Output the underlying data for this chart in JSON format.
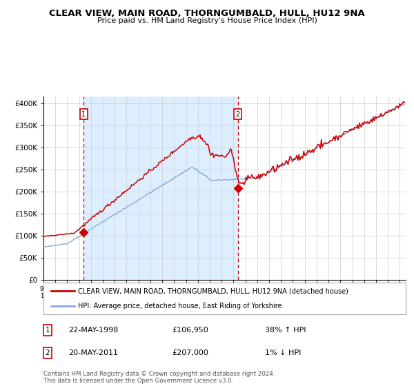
{
  "title": "CLEAR VIEW, MAIN ROAD, THORNGUMBALD, HULL, HU12 9NA",
  "subtitle": "Price paid vs. HM Land Registry's House Price Index (HPI)",
  "ylabel_ticks": [
    "£0",
    "£50K",
    "£100K",
    "£150K",
    "£200K",
    "£250K",
    "£300K",
    "£350K",
    "£400K"
  ],
  "ytick_values": [
    0,
    50000,
    100000,
    150000,
    200000,
    250000,
    300000,
    350000,
    400000
  ],
  "ylim": [
    0,
    415000
  ],
  "sale1_date": "22-MAY-1998",
  "sale1_price": 106950,
  "sale1_year": 1998.37,
  "sale1_pct": "38%",
  "sale1_dir": "↑",
  "sale2_date": "20-MAY-2011",
  "sale2_price": 207000,
  "sale2_year": 2011.37,
  "sale2_pct": "1%",
  "sale2_dir": "↓",
  "legend_line1": "CLEAR VIEW, MAIN ROAD, THORNGUMBALD, HULL, HU12 9NA (detached house)",
  "legend_line2": "HPI: Average price, detached house, East Riding of Yorkshire",
  "footer": "Contains HM Land Registry data © Crown copyright and database right 2024.\nThis data is licensed under the Open Government Licence v3.0.",
  "red_line_color": "#cc0000",
  "blue_line_color": "#88aadd",
  "bg_shaded_color": "#ddeeff",
  "vline_color": "#cc0000",
  "grid_color": "#cccccc",
  "dot_color": "#cc0000",
  "xlim_left": 1995.0,
  "xlim_right": 2025.5
}
